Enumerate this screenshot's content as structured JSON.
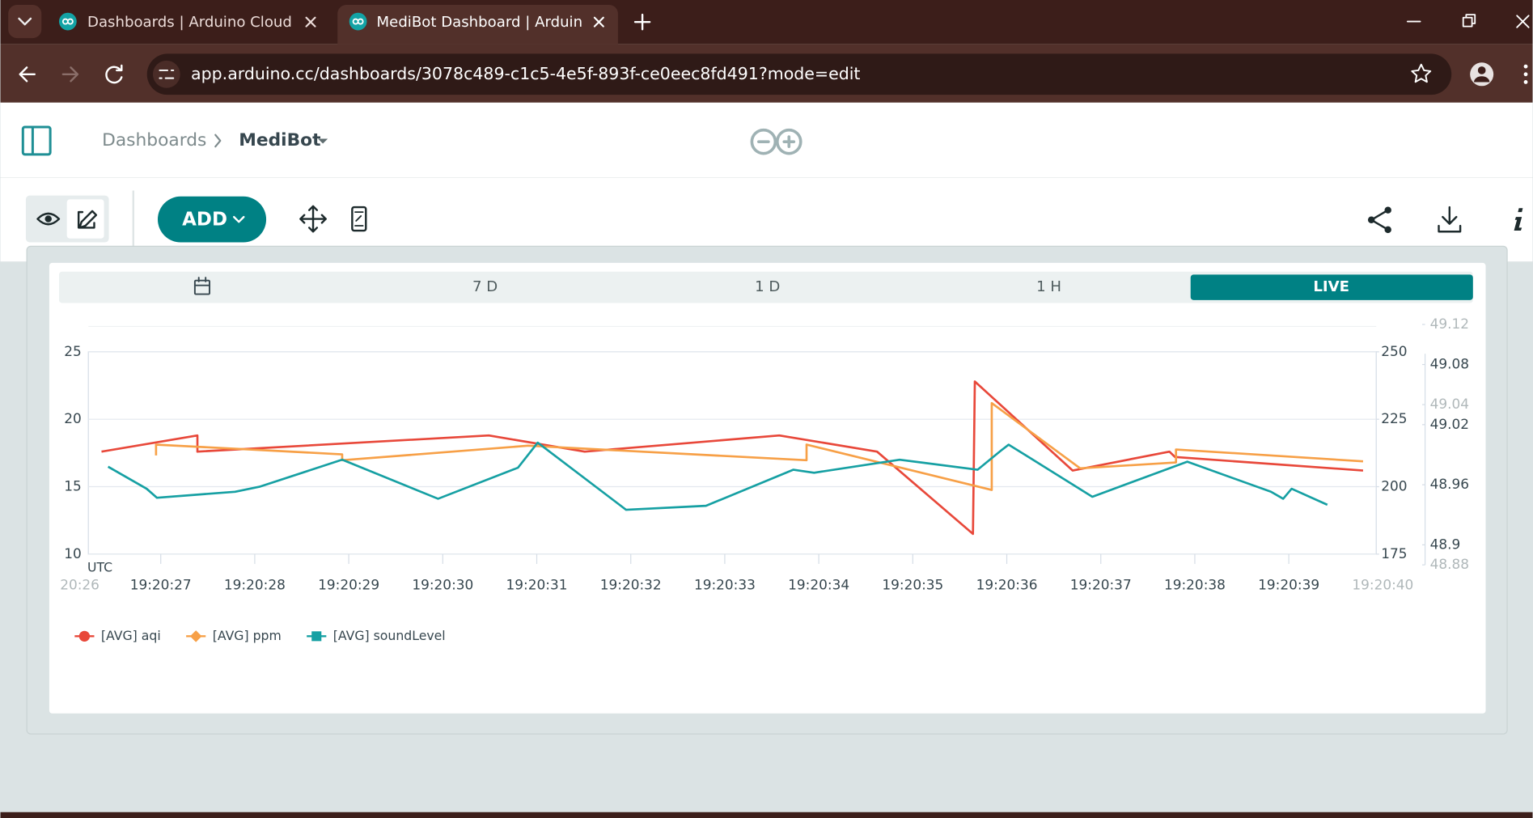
{
  "browser": {
    "tabs": [
      "Dashboards | Arduino Cloud",
      "MediBot Dashboard | Arduino C"
    ],
    "url": "app.arduino.cc/dashboards/3078c489-c1c5-4e5f-893f-ce0eec8fd491?mode=edit"
  },
  "header": {
    "breadcrumb": [
      "Dashboards",
      "MediBot"
    ]
  },
  "toolbar": {
    "add_button": "ADD"
  },
  "time_ranges": [
    "7 D",
    "1 D",
    "1 H",
    "LIVE"
  ],
  "chart_data": {
    "type": "line",
    "timezone": "UTC",
    "xlim": [
      26.23,
      39.93
    ],
    "xticks": [
      {
        "value": 26,
        "label": "20:26"
      },
      {
        "value": 27,
        "label": "19:20:27"
      },
      {
        "value": 28,
        "label": "19:20:28"
      },
      {
        "value": 29,
        "label": "19:20:29"
      },
      {
        "value": 30,
        "label": "19:20:30"
      },
      {
        "value": 31,
        "label": "19:20:31"
      },
      {
        "value": 32,
        "label": "19:20:32"
      },
      {
        "value": 33,
        "label": "19:20:33"
      },
      {
        "value": 34,
        "label": "19:20:34"
      },
      {
        "value": 35,
        "label": "19:20:35"
      },
      {
        "value": 36,
        "label": "19:20:36"
      },
      {
        "value": 37,
        "label": "19:20:37"
      },
      {
        "value": 38,
        "label": "19:20:38"
      },
      {
        "value": 39,
        "label": "19:20:39"
      },
      {
        "value": 40,
        "label": "19:20:40"
      }
    ],
    "ylim": [
      10,
      25
    ],
    "yticks": [
      25,
      20,
      15,
      10
    ],
    "y2lim": [
      175,
      250
    ],
    "y2ticks": [
      250,
      225,
      200,
      175
    ],
    "y3lim": [
      48.88,
      49.12
    ],
    "y3ticks": [
      49.12,
      49.08,
      49.04,
      49.02,
      48.96,
      48.9,
      48.88
    ],
    "grid": true,
    "series": [
      {
        "name": "[AVG] aqi",
        "color": "#e8483a",
        "marker": "circle",
        "axis": "y",
        "x": [
          26.37,
          27.39,
          27.39,
          30.49,
          31.51,
          33.58,
          34.62,
          35.64,
          35.66,
          36.7,
          37.73,
          37.79,
          39.79
        ],
        "values": [
          17.6,
          18.8,
          17.6,
          18.8,
          17.6,
          18.8,
          17.6,
          11.5,
          22.8,
          16.2,
          17.6,
          17.2,
          16.2
        ]
      },
      {
        "name": "[AVG] ppm",
        "color": "#f7a047",
        "marker": "diamond",
        "axis": "y2",
        "x": [
          26.95,
          26.95,
          28.93,
          28.93,
          30.91,
          33.87,
          33.87,
          35.84,
          35.84,
          36.78,
          37.8,
          37.8,
          39.79
        ],
        "values": [
          211.6,
          215.6,
          212.0,
          209.8,
          215.2,
          209.8,
          215.6,
          198.8,
          231.0,
          206.8,
          209.0,
          213.8,
          209.4
        ]
      },
      {
        "name": "[AVG] soundLevel",
        "color": "#16a0a3",
        "marker": "square",
        "axis": "y3",
        "x": [
          26.44,
          26.85,
          26.96,
          27.79,
          28.05,
          28.93,
          29.95,
          30.8,
          31.01,
          31.95,
          32.8,
          33.73,
          33.95,
          34.86,
          35.69,
          35.95,
          36.02,
          36.91,
          37.92,
          38.81,
          38.94,
          39.03,
          39.41
        ],
        "values": [
          48.978,
          48.956,
          48.947,
          48.953,
          48.958,
          48.985,
          48.946,
          48.977,
          49.002,
          48.935,
          48.939,
          48.975,
          48.972,
          48.985,
          48.975,
          48.995,
          49.0,
          48.948,
          48.983,
          48.953,
          48.946,
          48.956,
          48.94
        ]
      }
    ]
  }
}
